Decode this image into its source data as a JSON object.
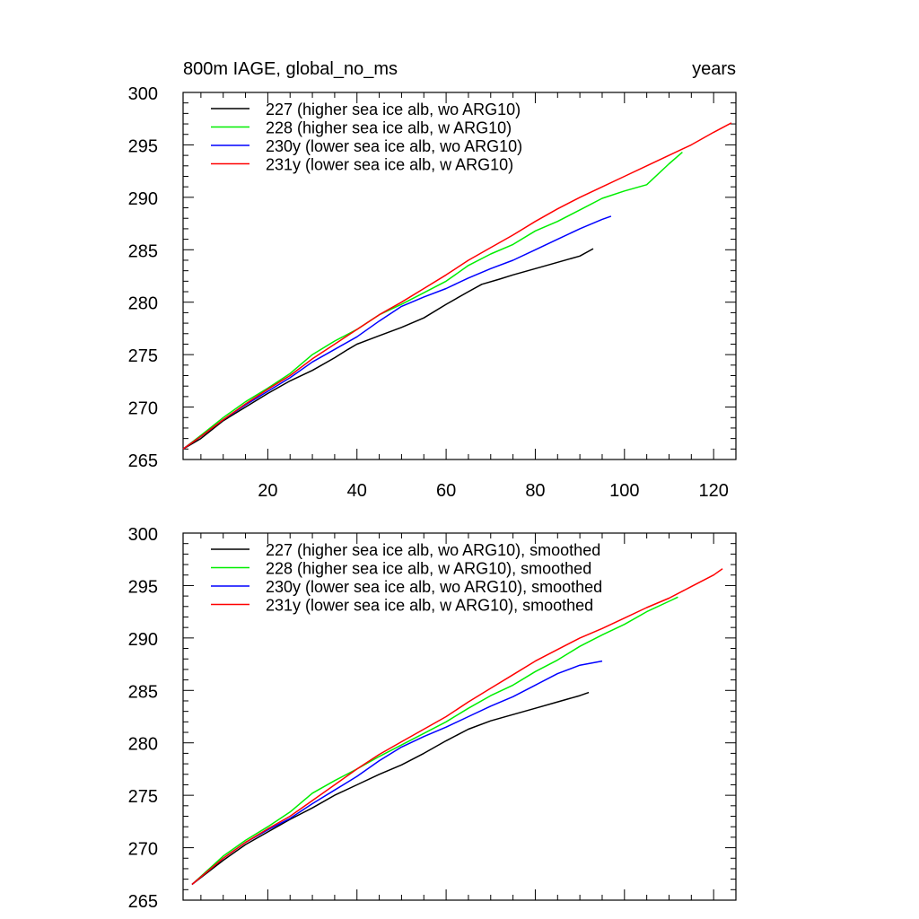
{
  "chart_data": [
    {
      "type": "line",
      "title_left": "800m IAGE, global_no_ms",
      "title_right": "years",
      "xlim": [
        1,
        125
      ],
      "ylim": [
        265,
        300
      ],
      "x_ticks": [
        20,
        40,
        60,
        80,
        100,
        120
      ],
      "x_tick_labels_shown": true,
      "y_ticks": [
        265,
        270,
        275,
        280,
        285,
        290,
        295,
        300
      ],
      "grid": false,
      "legend_position": "top-left",
      "series": [
        {
          "name": "227 (higher sea ice alb, wo ARG10)",
          "color": "#000000",
          "points": [
            [
              1,
              266.0
            ],
            [
              5,
              267.0
            ],
            [
              10,
              268.7
            ],
            [
              15,
              270.0
            ],
            [
              20,
              271.3
            ],
            [
              25,
              272.5
            ],
            [
              30,
              273.5
            ],
            [
              35,
              274.7
            ],
            [
              38,
              275.5
            ],
            [
              40,
              276.0
            ],
            [
              45,
              276.8
            ],
            [
              50,
              277.6
            ],
            [
              55,
              278.5
            ],
            [
              60,
              279.8
            ],
            [
              65,
              281.0
            ],
            [
              68,
              281.7
            ],
            [
              72,
              282.2
            ],
            [
              75,
              282.6
            ],
            [
              80,
              283.2
            ],
            [
              85,
              283.8
            ],
            [
              90,
              284.4
            ],
            [
              93,
              285.1
            ]
          ]
        },
        {
          "name": "228 (higher sea ice alb, w ARG10)",
          "color": "#00ee00",
          "points": [
            [
              1,
              266.0
            ],
            [
              5,
              267.3
            ],
            [
              10,
              269.0
            ],
            [
              15,
              270.5
            ],
            [
              20,
              271.8
            ],
            [
              25,
              273.2
            ],
            [
              30,
              275.0
            ],
            [
              35,
              276.3
            ],
            [
              40,
              277.4
            ],
            [
              45,
              278.8
            ],
            [
              50,
              279.8
            ],
            [
              55,
              280.9
            ],
            [
              60,
              282.0
            ],
            [
              65,
              283.5
            ],
            [
              70,
              284.6
            ],
            [
              75,
              285.5
            ],
            [
              80,
              286.8
            ],
            [
              85,
              287.7
            ],
            [
              90,
              288.8
            ],
            [
              95,
              289.9
            ],
            [
              100,
              290.6
            ],
            [
              105,
              291.2
            ],
            [
              110,
              293.2
            ],
            [
              113,
              294.3
            ]
          ]
        },
        {
          "name": "230y (lower sea ice alb, wo ARG10)",
          "color": "#0000ff",
          "points": [
            [
              1,
              266.0
            ],
            [
              5,
              267.2
            ],
            [
              10,
              268.8
            ],
            [
              15,
              270.2
            ],
            [
              20,
              271.5
            ],
            [
              25,
              272.8
            ],
            [
              30,
              274.3
            ],
            [
              35,
              275.5
            ],
            [
              40,
              276.7
            ],
            [
              45,
              278.2
            ],
            [
              50,
              279.6
            ],
            [
              55,
              280.5
            ],
            [
              60,
              281.3
            ],
            [
              65,
              282.3
            ],
            [
              70,
              283.2
            ],
            [
              75,
              284.0
            ],
            [
              80,
              285.0
            ],
            [
              85,
              286.0
            ],
            [
              90,
              287.0
            ],
            [
              95,
              287.9
            ],
            [
              97,
              288.2
            ]
          ]
        },
        {
          "name": "231y (lower sea ice alb, w ARG10)",
          "color": "#ff0000",
          "points": [
            [
              1,
              266.0
            ],
            [
              5,
              267.2
            ],
            [
              10,
              268.8
            ],
            [
              15,
              270.3
            ],
            [
              20,
              271.7
            ],
            [
              25,
              273.0
            ],
            [
              30,
              274.6
            ],
            [
              35,
              276.0
            ],
            [
              40,
              277.4
            ],
            [
              45,
              278.8
            ],
            [
              50,
              280.0
            ],
            [
              55,
              281.3
            ],
            [
              60,
              282.6
            ],
            [
              65,
              284.0
            ],
            [
              70,
              285.2
            ],
            [
              75,
              286.4
            ],
            [
              80,
              287.7
            ],
            [
              85,
              288.9
            ],
            [
              90,
              290.0
            ],
            [
              95,
              291.0
            ],
            [
              100,
              292.0
            ],
            [
              105,
              293.0
            ],
            [
              110,
              294.0
            ],
            [
              115,
              295.0
            ],
            [
              120,
              296.2
            ],
            [
              124,
              297.1
            ]
          ]
        }
      ]
    },
    {
      "type": "line",
      "xlim": [
        1,
        125
      ],
      "ylim": [
        265,
        300
      ],
      "x_ticks": [
        20,
        40,
        60,
        80,
        100,
        120
      ],
      "x_tick_labels_shown": false,
      "y_ticks": [
        265,
        270,
        275,
        280,
        285,
        290,
        295,
        300
      ],
      "grid": false,
      "legend_position": "top-left",
      "series": [
        {
          "name": "227 (higher sea ice alb, wo ARG10), smoothed",
          "color": "#000000",
          "points": [
            [
              3,
              266.5
            ],
            [
              10,
              268.8
            ],
            [
              15,
              270.3
            ],
            [
              20,
              271.5
            ],
            [
              25,
              272.7
            ],
            [
              30,
              273.8
            ],
            [
              35,
              275.0
            ],
            [
              40,
              276.0
            ],
            [
              45,
              277.0
            ],
            [
              50,
              277.9
            ],
            [
              55,
              279.0
            ],
            [
              60,
              280.2
            ],
            [
              65,
              281.3
            ],
            [
              70,
              282.1
            ],
            [
              75,
              282.7
            ],
            [
              80,
              283.3
            ],
            [
              85,
              283.9
            ],
            [
              90,
              284.5
            ],
            [
              92,
              284.8
            ]
          ]
        },
        {
          "name": "228 (higher sea ice alb, w ARG10), smoothed",
          "color": "#00ee00",
          "points": [
            [
              3,
              266.5
            ],
            [
              10,
              269.2
            ],
            [
              15,
              270.7
            ],
            [
              20,
              272.0
            ],
            [
              25,
              273.4
            ],
            [
              30,
              275.2
            ],
            [
              35,
              276.4
            ],
            [
              40,
              277.5
            ],
            [
              45,
              278.7
            ],
            [
              50,
              279.8
            ],
            [
              55,
              280.9
            ],
            [
              60,
              282.0
            ],
            [
              65,
              283.3
            ],
            [
              70,
              284.5
            ],
            [
              75,
              285.5
            ],
            [
              80,
              286.8
            ],
            [
              85,
              287.9
            ],
            [
              90,
              289.2
            ],
            [
              95,
              290.3
            ],
            [
              100,
              291.3
            ],
            [
              105,
              292.5
            ],
            [
              110,
              293.5
            ],
            [
              112,
              293.9
            ]
          ]
        },
        {
          "name": "230y (lower sea ice alb, wo ARG10), smoothed",
          "color": "#0000ff",
          "points": [
            [
              3,
              266.5
            ],
            [
              10,
              269.0
            ],
            [
              15,
              270.5
            ],
            [
              20,
              271.7
            ],
            [
              25,
              272.8
            ],
            [
              30,
              274.2
            ],
            [
              35,
              275.5
            ],
            [
              40,
              276.8
            ],
            [
              45,
              278.3
            ],
            [
              50,
              279.6
            ],
            [
              55,
              280.6
            ],
            [
              60,
              281.5
            ],
            [
              65,
              282.5
            ],
            [
              70,
              283.5
            ],
            [
              75,
              284.4
            ],
            [
              80,
              285.5
            ],
            [
              85,
              286.6
            ],
            [
              90,
              287.4
            ],
            [
              95,
              287.8
            ]
          ]
        },
        {
          "name": "231y (lower sea ice alb, w ARG10), smoothed",
          "color": "#ff0000",
          "points": [
            [
              3,
              266.5
            ],
            [
              10,
              269.0
            ],
            [
              15,
              270.5
            ],
            [
              20,
              271.8
            ],
            [
              25,
              273.0
            ],
            [
              30,
              274.5
            ],
            [
              35,
              276.0
            ],
            [
              40,
              277.5
            ],
            [
              45,
              278.9
            ],
            [
              50,
              280.1
            ],
            [
              55,
              281.3
            ],
            [
              60,
              282.5
            ],
            [
              65,
              283.9
            ],
            [
              70,
              285.2
            ],
            [
              75,
              286.5
            ],
            [
              80,
              287.8
            ],
            [
              85,
              288.9
            ],
            [
              90,
              290.0
            ],
            [
              95,
              290.9
            ],
            [
              100,
              291.9
            ],
            [
              105,
              292.9
            ],
            [
              110,
              293.8
            ],
            [
              115,
              294.9
            ],
            [
              120,
              296.0
            ],
            [
              122,
              296.6
            ]
          ]
        }
      ]
    }
  ]
}
